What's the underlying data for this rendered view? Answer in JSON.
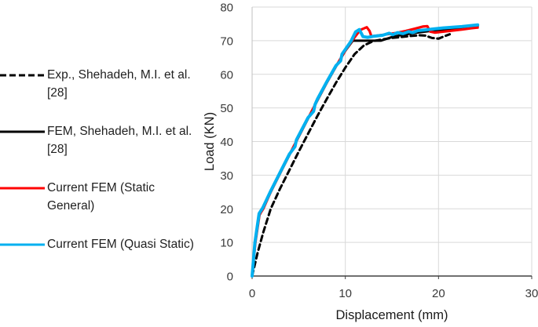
{
  "legend": {
    "items": [
      {
        "line1": "Exp., Shehadeh, M.I. et al.",
        "line2": "[28]"
      },
      {
        "line1": "FEM, Shehadeh, M.I. et al.",
        "line2": "[28]"
      },
      {
        "line1": "Current FEM (Static",
        "line2": "General)"
      },
      {
        "line1": "Current FEM (Quasi Static)",
        "line2": ""
      }
    ]
  },
  "chart_data": {
    "type": "line",
    "title": "",
    "xlabel": "Displacement (mm)",
    "ylabel": "Load (KN)",
    "xlim": [
      0,
      30
    ],
    "ylim": [
      0,
      80
    ],
    "xticks": [
      0,
      10,
      20,
      30
    ],
    "yticks": [
      0,
      10,
      20,
      30,
      40,
      50,
      60,
      70,
      80
    ],
    "grid": true,
    "legend_position": "left",
    "colors": {
      "grid": "#d9d9d9",
      "axis": "#404040",
      "axis_light": "#bfbfbf",
      "tick_text": "#3a3a3a",
      "title_text": "#1a1a1a"
    },
    "series": [
      {
        "id": "exp-shehadeh",
        "name": "Exp., Shehadeh, M.I. et al. [28]",
        "color": "#000000",
        "width": 3,
        "dash": "7 4.5",
        "legend_dash": "8 4",
        "points": [
          [
            0,
            0
          ],
          [
            0.6,
            7
          ],
          [
            1.2,
            13
          ],
          [
            2,
            20
          ],
          [
            3,
            26
          ],
          [
            4,
            31.5
          ],
          [
            5,
            37
          ],
          [
            6,
            42.3
          ],
          [
            7,
            47.6
          ],
          [
            8,
            52.6
          ],
          [
            9,
            57.5
          ],
          [
            10,
            62
          ],
          [
            11,
            66
          ],
          [
            12,
            68.6
          ],
          [
            13,
            69.9
          ],
          [
            14,
            70.4
          ],
          [
            15,
            70.8
          ],
          [
            16,
            71.1
          ],
          [
            17,
            71.4
          ],
          [
            18,
            71.6
          ],
          [
            18.6,
            71.5
          ],
          [
            19.3,
            70.8
          ],
          [
            20,
            70.6
          ],
          [
            20.7,
            71.4
          ],
          [
            21.2,
            71.9
          ]
        ]
      },
      {
        "id": "fem-shehadeh",
        "name": "FEM, Shehadeh, M.I. et al. [28]",
        "color": "#000000",
        "width": 3,
        "dash": "",
        "legend_dash": "",
        "points": [
          [
            0,
            0
          ],
          [
            0.3,
            10
          ],
          [
            0.7,
            17.5
          ],
          [
            1.1,
            20
          ],
          [
            2,
            25
          ],
          [
            3,
            30.5
          ],
          [
            4,
            36
          ],
          [
            5,
            41.4
          ],
          [
            6,
            46.8
          ],
          [
            7,
            52.2
          ],
          [
            8,
            57.4
          ],
          [
            9,
            62.3
          ],
          [
            10,
            67
          ],
          [
            10.8,
            70
          ],
          [
            13.8,
            70
          ],
          [
            14.8,
            70.9
          ],
          [
            16,
            71.7
          ],
          [
            18,
            72.5
          ],
          [
            20,
            73.2
          ],
          [
            22,
            73.8
          ],
          [
            24.2,
            74.3
          ]
        ]
      },
      {
        "id": "current-fem-static",
        "name": "Current FEM (Static General)",
        "color": "#ff0000",
        "width": 3.2,
        "dash": "",
        "legend_dash": "",
        "points": [
          [
            0,
            0
          ],
          [
            0.35,
            10
          ],
          [
            0.8,
            18.3
          ],
          [
            1.2,
            20
          ],
          [
            2,
            25
          ],
          [
            3,
            30.6
          ],
          [
            4,
            36.1
          ],
          [
            5,
            41.5
          ],
          [
            6,
            46.9
          ],
          [
            7,
            52.3
          ],
          [
            8,
            57.5
          ],
          [
            9,
            62.4
          ],
          [
            10,
            67.1
          ],
          [
            10.8,
            70.3
          ],
          [
            11.6,
            73.2
          ],
          [
            12.3,
            74
          ],
          [
            12.6,
            72.9
          ],
          [
            12.8,
            71.3
          ],
          [
            13.4,
            71.5
          ],
          [
            14.5,
            71.9
          ],
          [
            15.5,
            72.3
          ],
          [
            16.5,
            72.9
          ],
          [
            17.5,
            73.6
          ],
          [
            18.3,
            74.2
          ],
          [
            18.8,
            74.3
          ],
          [
            19.1,
            72.7
          ],
          [
            19.6,
            72.4
          ],
          [
            20.3,
            72.6
          ],
          [
            21.5,
            73
          ],
          [
            22.5,
            73.3
          ],
          [
            23.5,
            73.7
          ],
          [
            24.2,
            73.9
          ]
        ]
      },
      {
        "id": "current-fem-quasi",
        "name": "Current FEM (Quasi Static)",
        "color": "#00b0f0",
        "width": 4,
        "dash": "",
        "legend_dash": "",
        "points": [
          [
            0,
            0
          ],
          [
            0.3,
            10
          ],
          [
            0.75,
            18.6
          ],
          [
            1.15,
            20.3
          ],
          [
            2,
            25.3
          ],
          [
            3,
            30.8
          ],
          [
            4,
            36.3
          ],
          [
            4.6,
            38.5
          ],
          [
            4.75,
            40.5
          ],
          [
            5,
            41.8
          ],
          [
            6,
            47.1
          ],
          [
            6.6,
            49
          ],
          [
            6.75,
            51
          ],
          [
            7,
            52.6
          ],
          [
            8,
            57.7
          ],
          [
            9,
            62.6
          ],
          [
            9.5,
            64
          ],
          [
            9.65,
            66
          ],
          [
            10,
            67.4
          ],
          [
            10.6,
            69.8
          ],
          [
            11.1,
            72.6
          ],
          [
            11.5,
            73.3
          ],
          [
            11.9,
            71.2
          ],
          [
            12.4,
            71
          ],
          [
            13,
            71.3
          ],
          [
            14,
            71.6
          ],
          [
            14.7,
            72.2
          ],
          [
            15.1,
            71.8
          ],
          [
            15.6,
            72.4
          ],
          [
            16.2,
            72.1
          ],
          [
            16.8,
            72.7
          ],
          [
            17.2,
            72.4
          ],
          [
            17.8,
            73
          ],
          [
            18.5,
            73.2
          ],
          [
            19.5,
            73.5
          ],
          [
            20.5,
            73.8
          ],
          [
            21.5,
            74
          ],
          [
            22.5,
            74.2
          ],
          [
            23.5,
            74.5
          ],
          [
            24.2,
            74.7
          ]
        ]
      }
    ]
  }
}
